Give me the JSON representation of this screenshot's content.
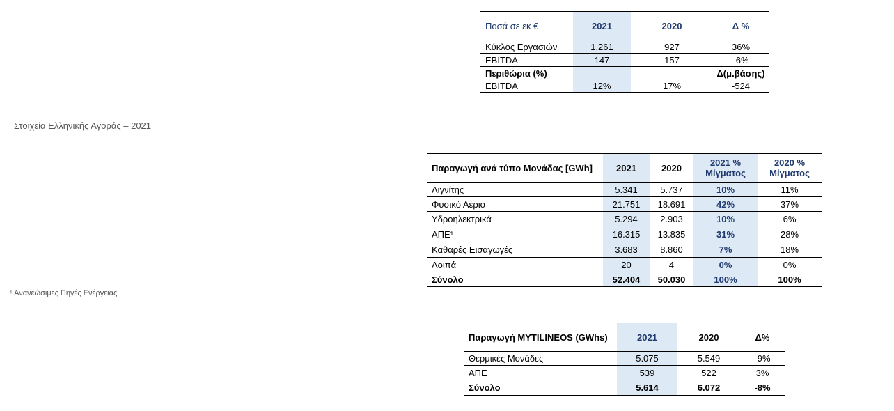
{
  "heading": "Στοιχεία Ελληνικής Αγοράς – 2021",
  "footnote": "¹ Ανανεώσιμες Πηγές Ενέργειας",
  "table1": {
    "header": [
      "Ποσά σε εκ €",
      "2021",
      "2020",
      "Δ %"
    ],
    "rows": [
      [
        "Κύκλος Εργασιών",
        "1.261",
        "927",
        "36%"
      ],
      [
        "EBITDA",
        "147",
        "157",
        "-6%"
      ],
      [
        "Περιθώρια (%)",
        "",
        "",
        "Δ(μ.βάσης)"
      ],
      [
        "EBITDA",
        "12%",
        "17%",
        "-524"
      ]
    ]
  },
  "table2": {
    "header": [
      "Παραγωγή ανά τύπο Μονάδας [GWh]",
      "2021",
      "2020",
      "2021 % Μίγματος",
      "2020 % Μίγματος"
    ],
    "rows": [
      [
        "Λιγνίτης",
        "5.341",
        "5.737",
        "10%",
        "11%"
      ],
      [
        "Φυσικό Αέριο",
        "21.751",
        "18.691",
        "42%",
        "37%"
      ],
      [
        "Υδροηλεκτρικά",
        "5.294",
        "2.903",
        "10%",
        "6%"
      ],
      [
        "ΑΠΕ¹",
        "16.315",
        "13.835",
        "31%",
        "28%"
      ],
      [
        "Καθαρές Εισαγωγές",
        "3.683",
        "8.860",
        "7%",
        "18%"
      ],
      [
        "Λοιπά",
        "20",
        "4",
        "0%",
        "0%"
      ],
      [
        "Σύνολο",
        "52.404",
        "50.030",
        "100%",
        "100%"
      ]
    ]
  },
  "table3": {
    "header": [
      "Παραγωγή MYTILINEOS (GWhs)",
      "2021",
      "2020",
      "Δ%"
    ],
    "rows": [
      [
        "Θερμικές Μονάδες",
        "5.075",
        "5.549",
        "-9%"
      ],
      [
        "ΑΠΕ",
        "539",
        "522",
        "3%"
      ],
      [
        "Σύνολο",
        "5.614",
        "6.072",
        "-8%"
      ]
    ]
  }
}
